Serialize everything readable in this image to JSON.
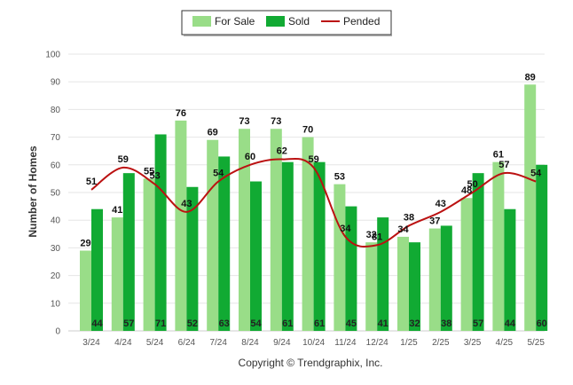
{
  "chart_data": {
    "type": "bar",
    "ylabel": "Number of Homes",
    "ylim": [
      0,
      100
    ],
    "yticks": [
      0,
      10,
      20,
      30,
      40,
      50,
      60,
      70,
      80,
      90,
      100
    ],
    "grid": true,
    "legend_position": "top-center",
    "categories": [
      "3/24",
      "4/24",
      "5/24",
      "6/24",
      "7/24",
      "8/24",
      "9/24",
      "10/24",
      "11/24",
      "12/24",
      "1/25",
      "2/25",
      "3/25",
      "4/25",
      "5/25"
    ],
    "series": [
      {
        "name": "For Sale",
        "type": "bar",
        "color": "#99dd88",
        "values": [
          29,
          41,
          55,
          76,
          69,
          73,
          73,
          70,
          53,
          32,
          34,
          37,
          48,
          61,
          89
        ]
      },
      {
        "name": "Sold",
        "type": "bar",
        "color": "#11aa33",
        "values": [
          44,
          57,
          71,
          52,
          63,
          54,
          61,
          61,
          45,
          41,
          32,
          38,
          57,
          44,
          60
        ]
      },
      {
        "name": "Pended",
        "type": "line",
        "color": "#bb1111",
        "values": [
          51,
          59,
          53,
          43,
          54,
          60,
          62,
          59,
          34,
          31,
          38,
          43,
          50,
          57,
          54
        ]
      }
    ]
  },
  "footer": {
    "copyright": "Copyright © Trendgraphix, Inc."
  }
}
